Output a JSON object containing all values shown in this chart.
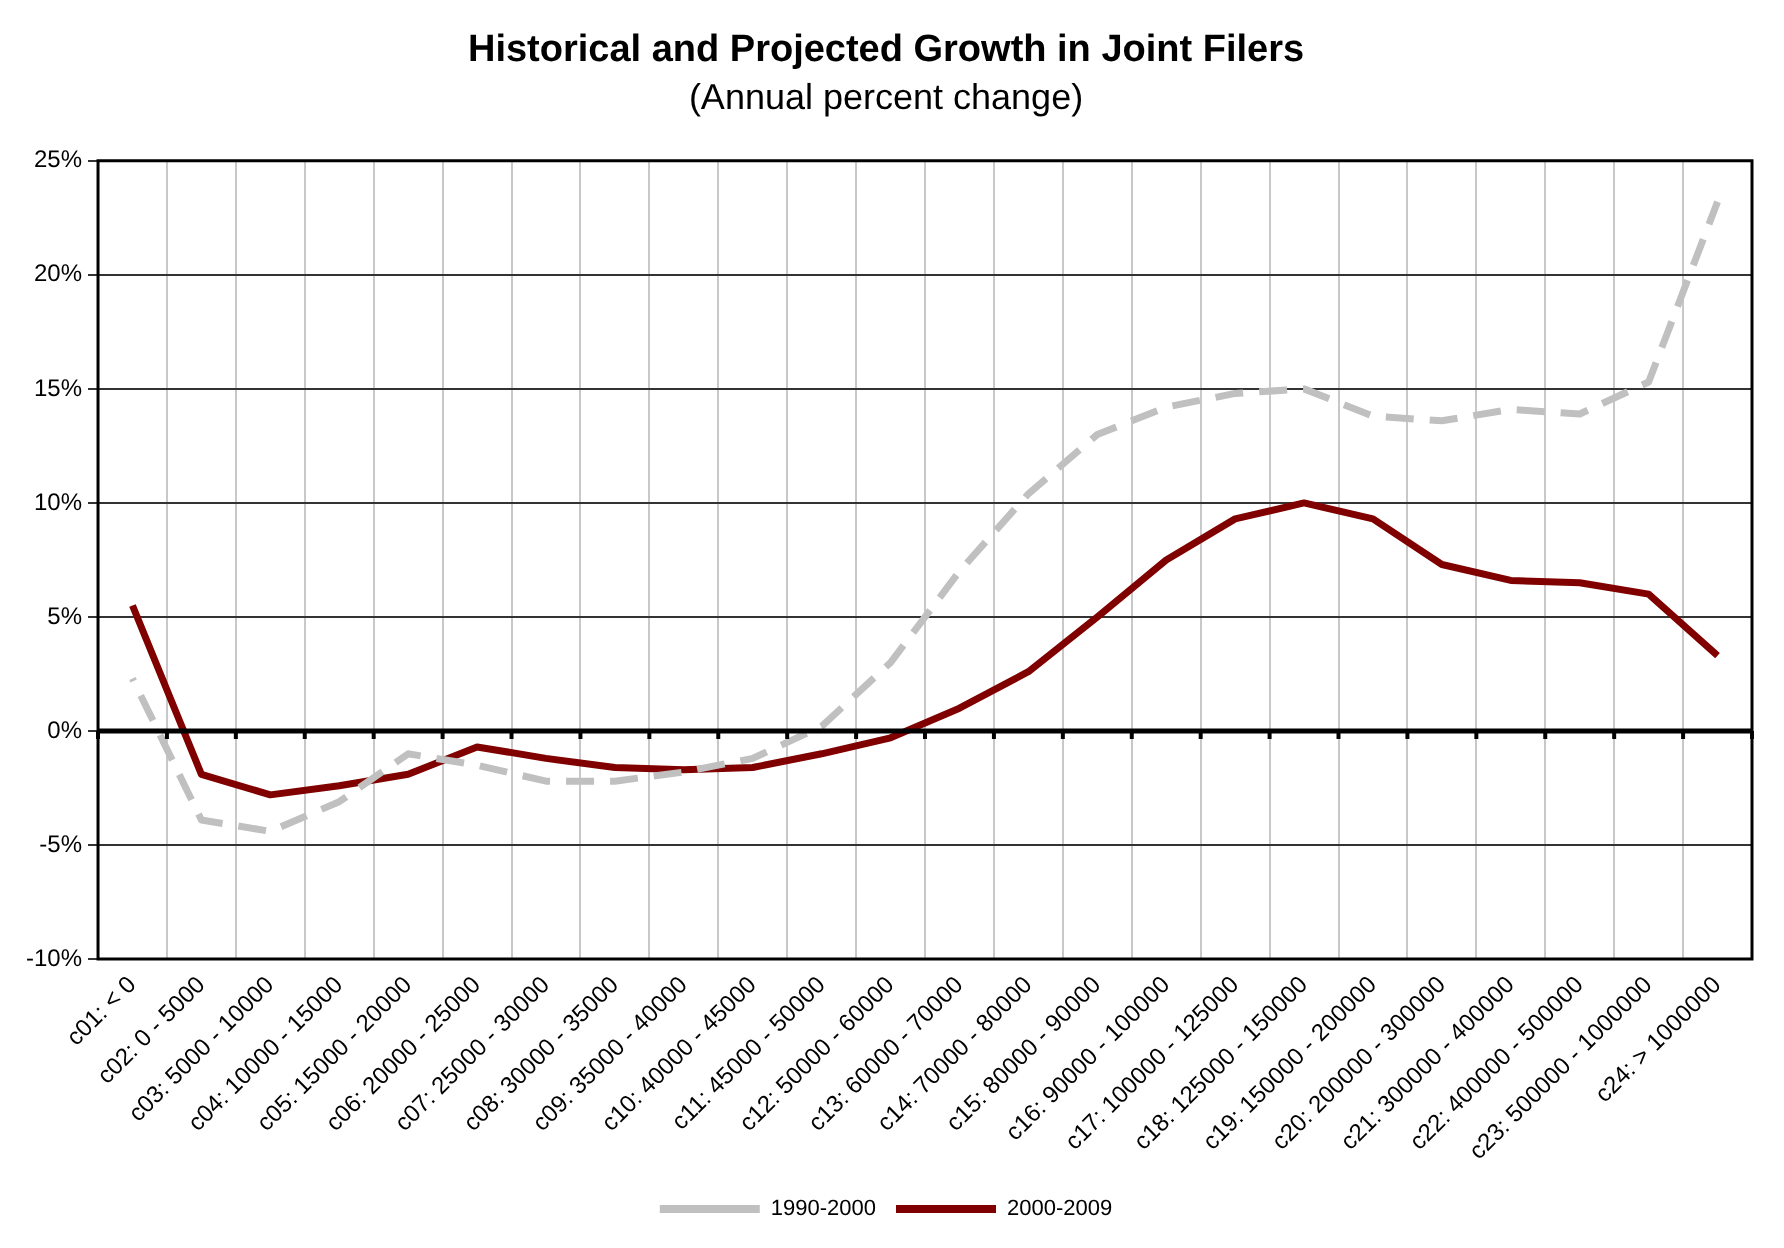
{
  "chart_data": {
    "type": "line",
    "title": "Historical and Projected Growth in Joint Filers",
    "subtitle": "(Annual percent change)",
    "categories": [
      "c01: < 0",
      "c02: 0 - 5000",
      "c03: 5000 - 10000",
      "c04: 10000 - 15000",
      "c05: 15000 - 20000",
      "c06: 20000 - 25000",
      "c07: 25000 - 30000",
      "c08: 30000 - 35000",
      "c09: 35000 - 40000",
      "c10: 40000 - 45000",
      "c11: 45000 - 50000",
      "c12: 50000 - 60000",
      "c13: 60000 - 70000",
      "c14: 70000 - 80000",
      "c15: 80000 - 90000",
      "c16: 90000 - 100000",
      "c17: 100000 - 125000",
      "c18: 125000 - 150000",
      "c19: 150000 - 200000",
      "c20: 200000 - 300000",
      "c21: 300000 - 400000",
      "c22: 400000 - 500000",
      "c23: 500000 - 1000000",
      "c24: > 1000000"
    ],
    "series": [
      {
        "name": "1990-2000",
        "color": "#c0c0c0",
        "line_style": "dashed",
        "values": [
          2.3,
          -3.9,
          -4.4,
          -3.1,
          -1.0,
          -1.5,
          -2.2,
          -2.2,
          -1.8,
          -1.2,
          0.2,
          3.0,
          7.0,
          10.4,
          13.0,
          14.2,
          14.8,
          15.0,
          13.8,
          13.6,
          14.1,
          13.9,
          15.3,
          23.2
        ]
      },
      {
        "name": "2000-2009",
        "color": "#800000",
        "line_style": "solid",
        "values": [
          5.5,
          -1.9,
          -2.8,
          -2.4,
          -1.9,
          -0.7,
          -1.2,
          -1.6,
          -1.7,
          -1.6,
          -1.0,
          -0.3,
          1.0,
          2.6,
          5.0,
          7.5,
          9.3,
          10.0,
          9.3,
          7.3,
          6.6,
          6.5,
          6.0,
          3.3
        ]
      }
    ],
    "ylim": [
      -10,
      25
    ],
    "yticks": [
      {
        "value": -10,
        "label": "-10%"
      },
      {
        "value": -5,
        "label": "-5%"
      },
      {
        "value": 0,
        "label": "0%"
      },
      {
        "value": 5,
        "label": "5%"
      },
      {
        "value": 10,
        "label": "10%"
      },
      {
        "value": 15,
        "label": "15%"
      },
      {
        "value": 20,
        "label": "20%"
      },
      {
        "value": 25,
        "label": "25%"
      }
    ],
    "grid": true,
    "legend": "bottom",
    "marker": "none"
  }
}
